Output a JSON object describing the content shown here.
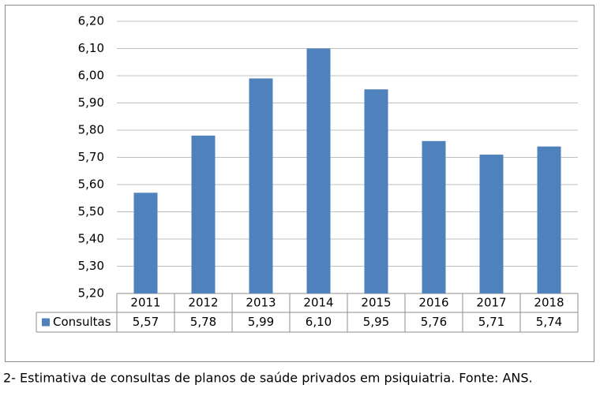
{
  "chart_data": {
    "type": "bar",
    "categories": [
      "2011",
      "2012",
      "2013",
      "2014",
      "2015",
      "2016",
      "2017",
      "2018"
    ],
    "series": [
      {
        "name": "Consultas",
        "color": "#4f81bd",
        "values": [
          5.57,
          5.78,
          5.99,
          6.1,
          5.95,
          5.76,
          5.71,
          5.74
        ],
        "value_labels": [
          "5,57",
          "5,78",
          "5,99",
          "6,10",
          "5,95",
          "5,76",
          "5,71",
          "5,74"
        ]
      }
    ],
    "ylim": [
      5.2,
      6.2
    ],
    "yticks": [
      {
        "value": 5.2,
        "label": "5,20"
      },
      {
        "value": 5.3,
        "label": "5,30"
      },
      {
        "value": 5.4,
        "label": "5,40"
      },
      {
        "value": 5.5,
        "label": "5,50"
      },
      {
        "value": 5.6,
        "label": "5,60"
      },
      {
        "value": 5.7,
        "label": "5,70"
      },
      {
        "value": 5.8,
        "label": "5,80"
      },
      {
        "value": 5.9,
        "label": "5,90"
      },
      {
        "value": 6.0,
        "label": "6,00"
      },
      {
        "value": 6.1,
        "label": "6,10"
      },
      {
        "value": 6.2,
        "label": "6,20"
      }
    ],
    "grid": true,
    "caption": "2- Estimativa de consultas de planos de saúde privados em psiquiatria. Fonte: ANS."
  }
}
